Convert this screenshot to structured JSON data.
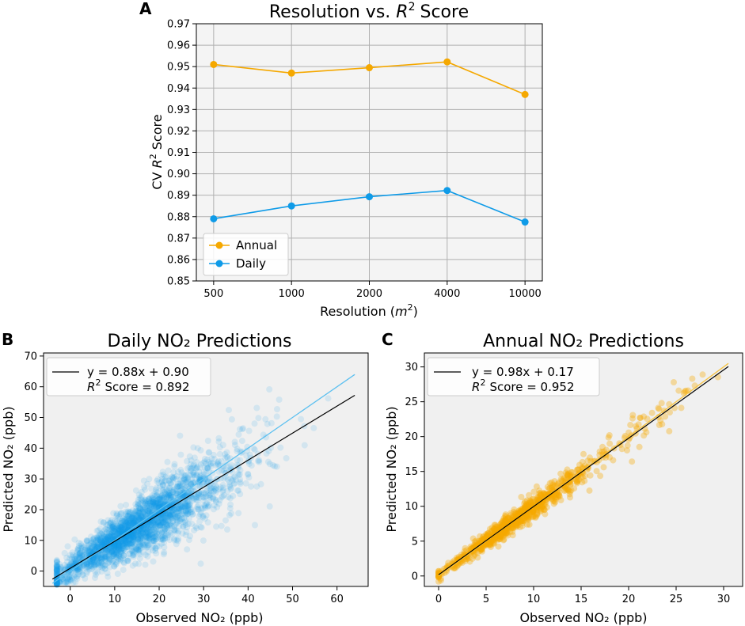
{
  "panels": {
    "a": {
      "letter": "A"
    },
    "b": {
      "letter": "B"
    },
    "c": {
      "letter": "C"
    }
  },
  "chart_data": [
    {
      "type": "line",
      "title": "Resolution vs. R² Score",
      "title_prefix": "Resolution vs.",
      "title_math": "R",
      "title_sup": "2",
      "title_suffix": "Score",
      "xlabel_prefix": "Resolution (",
      "xlabel_math": "m",
      "xlabel_sup": "2",
      "xlabel_suffix": ")",
      "ylabel_prefix": "CV",
      "ylabel_math": "R",
      "ylabel_sup": "2",
      "ylabel_suffix": "Score",
      "categories": [
        "500",
        "1000",
        "2000",
        "4000",
        "10000"
      ],
      "ylim": [
        0.85,
        0.97
      ],
      "yticks": [
        "0.85",
        "0.86",
        "0.87",
        "0.88",
        "0.89",
        "0.90",
        "0.91",
        "0.92",
        "0.93",
        "0.94",
        "0.95",
        "0.96",
        "0.97"
      ],
      "grid": true,
      "legend_position": "lower-left",
      "series": [
        {
          "name": "Annual",
          "color": "#f5a800",
          "values": [
            0.951,
            0.947,
            0.9495,
            0.9522,
            0.937
          ]
        },
        {
          "name": "Daily",
          "color": "#0f9be8",
          "values": [
            0.879,
            0.885,
            0.8893,
            0.8922,
            0.8775
          ]
        }
      ]
    },
    {
      "type": "scatter",
      "title": "Daily NO₂ Predictions",
      "xlabel": "Observed NO₂ (ppb)",
      "ylabel": "Predicted NO₂ (ppb)",
      "xlim": [
        -6,
        67
      ],
      "ylim": [
        -5,
        71
      ],
      "xticks": [
        0,
        10,
        20,
        30,
        40,
        50,
        60
      ],
      "yticks": [
        0,
        10,
        20,
        30,
        40,
        50,
        60,
        70
      ],
      "point_color": "#0f9be8",
      "point_count": 2600,
      "observed_range": [
        -3,
        58
      ],
      "fit_line": {
        "slope": 0.88,
        "intercept": 0.9,
        "x_range": [
          -4,
          64
        ],
        "color": "#000000"
      },
      "identity_line": {
        "x_range": [
          -4,
          64
        ],
        "color": "#5cc0f0"
      },
      "legend_line": "y = 0.88x + 0.90",
      "legend_score_prefix": "R",
      "legend_score_sup": "2",
      "legend_score_rest": "Score = 0.892",
      "legend_position": "upper-left"
    },
    {
      "type": "scatter",
      "title": "Annual NO₂ Predictions",
      "xlabel": "Observed NO₂ (ppb)",
      "ylabel": "Predicted NO₂ (ppb)",
      "xlim": [
        -1.5,
        32
      ],
      "ylim": [
        -1.5,
        32
      ],
      "xticks": [
        0,
        5,
        10,
        15,
        20,
        25,
        30
      ],
      "yticks": [
        0,
        5,
        10,
        15,
        20,
        25,
        30
      ],
      "point_color": "#f5a800",
      "point_count": 900,
      "observed_range": [
        0,
        30.5
      ],
      "fit_line": {
        "slope": 0.98,
        "intercept": 0.17,
        "x_range": [
          0,
          30.5
        ],
        "color": "#000000"
      },
      "identity_line": {
        "x_range": [
          0,
          30.5
        ],
        "color": "#f5c242"
      },
      "legend_line": "y = 0.98x + 0.17",
      "legend_score_prefix": "R",
      "legend_score_sup": "2",
      "legend_score_rest": "Score = 0.952",
      "legend_position": "upper-left"
    }
  ]
}
